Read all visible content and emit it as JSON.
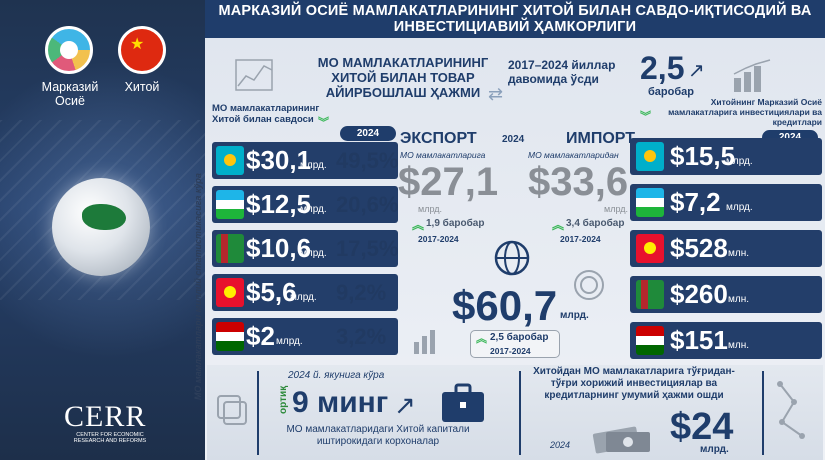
{
  "banner_title": "МАРКАЗИЙ ОСИЁ МАМЛАКАТЛАРИНИНГ ХИТОЙ БИЛАН САВДО-ИҚТИСОДИЙ ВА ИНВЕСТИЦИАВИЙ ҲАМКОРЛИГИ",
  "left": {
    "ca_label": "Марказий Осиё",
    "cn_label": "Хитой",
    "brand": "CERR",
    "brand_sub": "CENTER FOR ECONOMIC RESEARCH AND REFORMS",
    "vertical_note": "МО мамлакатлари миллий статистикасига кўра"
  },
  "header": {
    "main_title": "МО МАМЛАКАТЛАРИНИНГ ХИТОЙ БИЛАН ТОВАР АЙИРБОШЛАШ ҲАЖМИ",
    "growth_text": "2017–2024 йиллар давомида ўсди",
    "growth_value": "2,5",
    "growth_unit": "баробар"
  },
  "trade": {
    "heading": "МО мамлакатларининг Хитой билан савдоси",
    "year": "2024",
    "rows": [
      {
        "value": "$30,1",
        "unit": "млрд.",
        "share": "49,5%",
        "flag": "kz"
      },
      {
        "value": "$12,5",
        "unit": "млрд.",
        "share": "20,6%",
        "flag": "uz"
      },
      {
        "value": "$10,6",
        "unit": "млрд.",
        "share": "17,5%",
        "flag": "tm"
      },
      {
        "value": "$5,6",
        "unit": "млрд.",
        "share": "9,2%",
        "flag": "kg"
      },
      {
        "value": "$2",
        "unit": "млрд.",
        "share": "3,2%",
        "flag": "tj"
      }
    ]
  },
  "export": {
    "label": "ЭКСПОРТ",
    "sub": "МО мамлакатларига",
    "value": "$27,1",
    "unit": "млрд.",
    "growth": "1,9 баробар",
    "period": "2017-2024"
  },
  "import": {
    "label": "ИМПОРТ",
    "sub": "МО мамлакатларидан",
    "value": "$33,6",
    "unit": "млрд.",
    "growth": "3,4 баробар",
    "period": "2017-2024"
  },
  "center_year": "2024",
  "total": {
    "value": "$60,7",
    "unit": "млрд.",
    "growth": "2,5 баробар",
    "period": "2017-2024"
  },
  "invest": {
    "heading": "Хитойнинг Марказий Осиё мамлакатларига инвестициялари ва кредитлари",
    "year": "2024",
    "rows": [
      {
        "value": "$15,5",
        "unit": "млрд.",
        "flag": "kz"
      },
      {
        "value": "$7,2",
        "unit": "млрд.",
        "flag": "uz"
      },
      {
        "value": "$528",
        "unit": "млн.",
        "flag": "kg"
      },
      {
        "value": "$260",
        "unit": "млн.",
        "flag": "tm"
      },
      {
        "value": "$151",
        "unit": "млн.",
        "flag": "tj"
      }
    ]
  },
  "bottom": {
    "note": "2024 й. якунига кўра",
    "ortiq": "ортиқ",
    "count": "9 минг",
    "desc": "МО мамлакатларидаги Хитой капитали иштирокидаги корхоналар",
    "fdi_title": "Хитойдан МО мамлакатларига тўғридан-тўғри хорижий инвестициялар ва кредитларнинг умумий ҳажми ошди",
    "fdi_year": "2024",
    "fdi_value": "$24",
    "fdi_unit": "млрд."
  }
}
